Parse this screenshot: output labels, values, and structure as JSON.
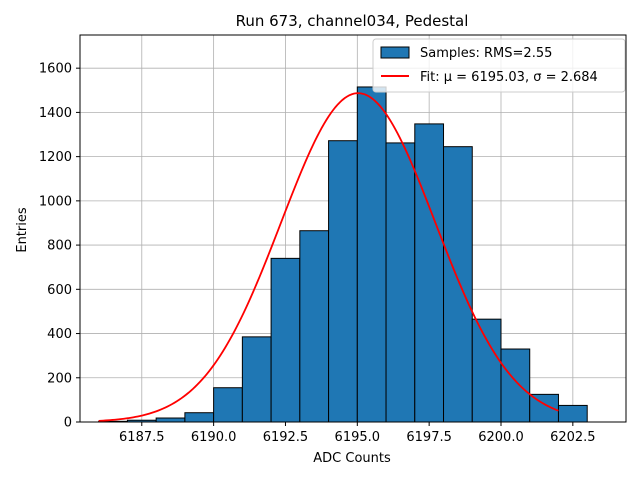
{
  "chart_data": {
    "type": "histogram",
    "title": "Run 673, channel034, Pedestal",
    "xlabel": "ADC Counts",
    "ylabel": "Entries",
    "xlim": [
      6185.35,
      6204.35
    ],
    "ylim": [
      0,
      1750
    ],
    "xticks": [
      6187.5,
      6190.0,
      6192.5,
      6195.0,
      6197.5,
      6200.0,
      6202.5
    ],
    "xtick_labels": [
      "6187.5",
      "6190.0",
      "6192.5",
      "6195.0",
      "6197.5",
      "6200.0",
      "6202.5"
    ],
    "yticks": [
      0,
      200,
      400,
      600,
      800,
      1000,
      1200,
      1400,
      1600
    ],
    "ytick_labels": [
      "0",
      "200",
      "400",
      "600",
      "800",
      "1000",
      "1200",
      "1400",
      "1600"
    ],
    "grid": true,
    "bins": {
      "edges": [
        6186,
        6187,
        6188,
        6189,
        6190,
        6191,
        6192,
        6193,
        6194,
        6195,
        6196,
        6197,
        6198,
        6199,
        6200,
        6201,
        6202,
        6203
      ],
      "counts": [
        3,
        8,
        18,
        42,
        155,
        385,
        740,
        865,
        1272,
        1515,
        1262,
        1348,
        1245,
        465,
        330,
        125,
        75
      ]
    },
    "bin_color": "#1f77b4",
    "fit": {
      "mu": 6195.03,
      "sigma": 2.684,
      "amplitude": 1487,
      "x_start": 6186,
      "x_end": 6202,
      "color": "#ff0000"
    },
    "legend": {
      "position": "top-right",
      "entries": [
        "Samples: RMS=2.55",
        "Fit: μ = 6195.03, σ = 2.684"
      ]
    }
  }
}
